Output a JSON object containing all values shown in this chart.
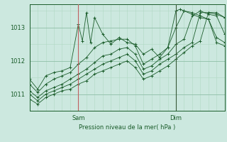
{
  "bg_color": "#cce8df",
  "plot_bg_color": "#cce8df",
  "line_color": "#1a5c2a",
  "grid_color_major": "#8fbfa8",
  "grid_color_minor": "#b0d8c4",
  "vline_color_sam": "#c06060",
  "vline_color_dim": "#3a5a3a",
  "xlabel_text": "Pression niveau de la mer( hPa )",
  "yticks": [
    1011,
    1012,
    1013
  ],
  "ylim": [
    1010.5,
    1013.7
  ],
  "xlim": [
    0,
    96
  ],
  "sam_x": 24,
  "dim_x": 72,
  "series": [
    [
      0,
      1011.45,
      4,
      1011.15,
      8,
      1011.55,
      12,
      1011.65,
      16,
      1011.7,
      20,
      1011.8,
      24,
      1013.1,
      26,
      1012.6,
      28,
      1013.45,
      30,
      1012.55,
      32,
      1013.3,
      36,
      1012.8,
      40,
      1012.5,
      44,
      1012.7,
      48,
      1012.55,
      52,
      1012.5,
      56,
      1012.2,
      60,
      1012.35,
      64,
      1012.1,
      68,
      1012.4,
      72,
      1013.5,
      74,
      1013.55,
      76,
      1013.5,
      80,
      1013.4,
      84,
      1013.3,
      88,
      1013.25,
      92,
      1012.7,
      96,
      1012.55
    ],
    [
      0,
      1011.3,
      4,
      1011.05,
      8,
      1011.3,
      12,
      1011.45,
      16,
      1011.55,
      20,
      1011.65,
      24,
      1011.9,
      28,
      1012.1,
      32,
      1012.4,
      36,
      1012.55,
      40,
      1012.6,
      44,
      1012.65,
      48,
      1012.65,
      52,
      1012.45,
      56,
      1011.9,
      60,
      1012.05,
      64,
      1012.2,
      68,
      1012.4,
      72,
      1013.0,
      76,
      1013.5,
      80,
      1013.45,
      84,
      1013.35,
      88,
      1013.25,
      92,
      1012.55,
      96,
      1012.45
    ],
    [
      0,
      1011.1,
      4,
      1010.9,
      8,
      1011.1,
      12,
      1011.2,
      16,
      1011.3,
      20,
      1011.45,
      24,
      1011.6,
      28,
      1011.75,
      32,
      1011.95,
      36,
      1012.15,
      40,
      1012.2,
      44,
      1012.35,
      48,
      1012.4,
      52,
      1012.2,
      56,
      1011.75,
      60,
      1011.85,
      64,
      1012.05,
      68,
      1012.2,
      72,
      1012.5,
      76,
      1012.65,
      80,
      1013.35,
      84,
      1013.5,
      88,
      1013.4,
      92,
      1013.35,
      96,
      1012.8
    ],
    [
      0,
      1011.0,
      4,
      1010.8,
      8,
      1011.0,
      12,
      1011.1,
      16,
      1011.2,
      20,
      1011.3,
      24,
      1011.45,
      28,
      1011.6,
      32,
      1011.75,
      36,
      1011.9,
      40,
      1012.0,
      44,
      1012.1,
      48,
      1012.2,
      52,
      1012.0,
      56,
      1011.6,
      60,
      1011.7,
      64,
      1011.9,
      68,
      1012.05,
      72,
      1012.2,
      76,
      1012.4,
      80,
      1012.55,
      84,
      1013.45,
      88,
      1013.45,
      92,
      1013.4,
      96,
      1013.3
    ],
    [
      0,
      1010.85,
      4,
      1010.7,
      8,
      1010.9,
      12,
      1011.0,
      16,
      1011.1,
      20,
      1011.15,
      24,
      1011.3,
      28,
      1011.4,
      32,
      1011.6,
      36,
      1011.7,
      40,
      1011.8,
      44,
      1011.9,
      48,
      1012.0,
      52,
      1011.8,
      56,
      1011.45,
      60,
      1011.55,
      64,
      1011.7,
      68,
      1011.85,
      72,
      1012.05,
      76,
      1012.25,
      80,
      1012.45,
      84,
      1012.6,
      88,
      1013.45,
      92,
      1013.45,
      96,
      1013.3
    ]
  ]
}
